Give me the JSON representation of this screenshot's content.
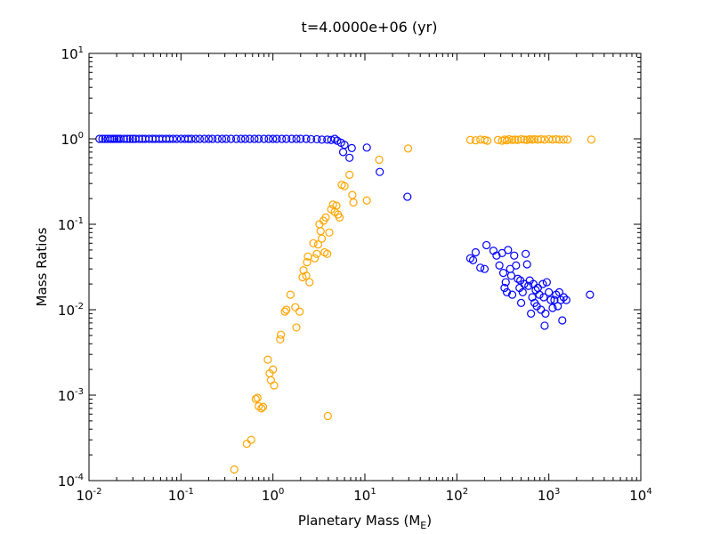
{
  "chart_data": {
    "type": "scatter",
    "title": "t=4.0000e+06 (yr)",
    "xlabel": "Planetary Mass (M",
    "xlabel_sub": "E",
    "xlabel_suffix": ")",
    "ylabel": "Mass Ratios",
    "xscale": "log",
    "yscale": "log",
    "xlim": [
      0.01,
      10000
    ],
    "ylim": [
      0.0001,
      10
    ],
    "grid": false,
    "x_ticks": [
      {
        "base": "10",
        "exp": "-2"
      },
      {
        "base": "10",
        "exp": "-1"
      },
      {
        "base": "10",
        "exp": "0"
      },
      {
        "base": "10",
        "exp": "1"
      },
      {
        "base": "10",
        "exp": "2"
      },
      {
        "base": "10",
        "exp": "3"
      },
      {
        "base": "10",
        "exp": "4"
      }
    ],
    "y_ticks": [
      {
        "base": "10",
        "exp": "-4"
      },
      {
        "base": "10",
        "exp": "-3"
      },
      {
        "base": "10",
        "exp": "-2"
      },
      {
        "base": "10",
        "exp": "-1"
      },
      {
        "base": "10",
        "exp": "0"
      },
      {
        "base": "10",
        "exp": "1"
      }
    ],
    "series": [
      {
        "color": "#0000ff",
        "marker": "open-circle",
        "points": [
          [
            0.013,
            1.0
          ],
          [
            0.014,
            1.0
          ],
          [
            0.015,
            1.0
          ],
          [
            0.016,
            1.0
          ],
          [
            0.017,
            1.0
          ],
          [
            0.018,
            1.0
          ],
          [
            0.019,
            1.0
          ],
          [
            0.02,
            1.0
          ],
          [
            0.021,
            1.0
          ],
          [
            0.022,
            1.0
          ],
          [
            0.024,
            1.0
          ],
          [
            0.026,
            1.0
          ],
          [
            0.028,
            1.0
          ],
          [
            0.03,
            1.0
          ],
          [
            0.032,
            1.0
          ],
          [
            0.035,
            1.0
          ],
          [
            0.038,
            1.0
          ],
          [
            0.041,
            1.0
          ],
          [
            0.045,
            1.0
          ],
          [
            0.049,
            1.0
          ],
          [
            0.053,
            1.0
          ],
          [
            0.058,
            1.0
          ],
          [
            0.063,
            1.0
          ],
          [
            0.069,
            1.0
          ],
          [
            0.075,
            1.0
          ],
          [
            0.082,
            1.0
          ],
          [
            0.09,
            1.0
          ],
          [
            0.1,
            1.0
          ],
          [
            0.11,
            1.0
          ],
          [
            0.12,
            1.0
          ],
          [
            0.13,
            1.0
          ],
          [
            0.145,
            1.0
          ],
          [
            0.16,
            1.0
          ],
          [
            0.18,
            1.0
          ],
          [
            0.2,
            1.0
          ],
          [
            0.22,
            1.0
          ],
          [
            0.25,
            1.0
          ],
          [
            0.28,
            1.0
          ],
          [
            0.31,
            1.0
          ],
          [
            0.35,
            1.0
          ],
          [
            0.4,
            1.0
          ],
          [
            0.45,
            1.0
          ],
          [
            0.5,
            1.0
          ],
          [
            0.56,
            1.0
          ],
          [
            0.63,
            1.0
          ],
          [
            0.7,
            1.0
          ],
          [
            0.8,
            1.0
          ],
          [
            0.9,
            1.0
          ],
          [
            1.0,
            1.0
          ],
          [
            1.1,
            1.0
          ],
          [
            1.25,
            1.0
          ],
          [
            1.4,
            1.0
          ],
          [
            1.6,
            1.0
          ],
          [
            1.8,
            1.0
          ],
          [
            2.0,
            1.0
          ],
          [
            2.3,
            1.0
          ],
          [
            2.6,
            0.99
          ],
          [
            3.0,
            0.99
          ],
          [
            3.4,
            0.98
          ],
          [
            3.9,
            0.98
          ],
          [
            4.3,
            0.97
          ],
          [
            4.7,
            1.0
          ],
          [
            5.0,
            0.95
          ],
          [
            5.5,
            0.9
          ],
          [
            6.0,
            0.85
          ],
          [
            5.8,
            0.7
          ],
          [
            6.8,
            0.6
          ],
          [
            7.2,
            0.78
          ],
          [
            10.5,
            0.79
          ],
          [
            14.5,
            0.41
          ],
          [
            29.0,
            0.21
          ],
          [
            140,
            0.04
          ],
          [
            150,
            0.038
          ],
          [
            160,
            0.047
          ],
          [
            180,
            0.031
          ],
          [
            200,
            0.03
          ],
          [
            210,
            0.057
          ],
          [
            250,
            0.049
          ],
          [
            270,
            0.043
          ],
          [
            290,
            0.033
          ],
          [
            310,
            0.046
          ],
          [
            320,
            0.027
          ],
          [
            330,
            0.018
          ],
          [
            340,
            0.021
          ],
          [
            350,
            0.016
          ],
          [
            360,
            0.05
          ],
          [
            380,
            0.03
          ],
          [
            390,
            0.025
          ],
          [
            400,
            0.015
          ],
          [
            420,
            0.043
          ],
          [
            440,
            0.033
          ],
          [
            460,
            0.023
          ],
          [
            480,
            0.018
          ],
          [
            490,
            0.022
          ],
          [
            500,
            0.012
          ],
          [
            520,
            0.016
          ],
          [
            540,
            0.02
          ],
          [
            560,
            0.045
          ],
          [
            580,
            0.034
          ],
          [
            600,
            0.019
          ],
          [
            620,
            0.022
          ],
          [
            640,
            0.009
          ],
          [
            660,
            0.014
          ],
          [
            680,
            0.02
          ],
          [
            700,
            0.012
          ],
          [
            720,
            0.017
          ],
          [
            740,
            0.011
          ],
          [
            760,
            0.018
          ],
          [
            790,
            0.015
          ],
          [
            820,
            0.01
          ],
          [
            860,
            0.02
          ],
          [
            880,
            0.014
          ],
          [
            900,
            0.0065
          ],
          [
            920,
            0.009
          ],
          [
            950,
            0.021
          ],
          [
            1000,
            0.016
          ],
          [
            1050,
            0.013
          ],
          [
            1100,
            0.0105
          ],
          [
            1150,
            0.013
          ],
          [
            1200,
            0.015
          ],
          [
            1250,
            0.011
          ],
          [
            1300,
            0.016
          ],
          [
            1350,
            0.013
          ],
          [
            1400,
            0.0075
          ],
          [
            1450,
            0.014
          ],
          [
            1550,
            0.013
          ],
          [
            2800,
            0.015
          ]
        ]
      },
      {
        "color": "#ffa500",
        "marker": "open-circle",
        "points": [
          [
            0.38,
            0.000135
          ],
          [
            0.52,
            0.00027
          ],
          [
            0.58,
            0.0003
          ],
          [
            0.65,
            0.0009
          ],
          [
            0.68,
            0.00093
          ],
          [
            0.7,
            0.00074
          ],
          [
            0.75,
            0.0007
          ],
          [
            0.78,
            0.00073
          ],
          [
            0.88,
            0.0026
          ],
          [
            0.92,
            0.0018
          ],
          [
            0.95,
            0.0015
          ],
          [
            1.0,
            0.002
          ],
          [
            1.03,
            0.0013
          ],
          [
            1.2,
            0.0045
          ],
          [
            1.22,
            0.0051
          ],
          [
            1.35,
            0.0095
          ],
          [
            1.4,
            0.01
          ],
          [
            1.55,
            0.015
          ],
          [
            1.75,
            0.0107
          ],
          [
            1.8,
            0.0062
          ],
          [
            1.95,
            0.0095
          ],
          [
            2.1,
            0.024
          ],
          [
            2.15,
            0.029
          ],
          [
            2.3,
            0.025
          ],
          [
            2.35,
            0.036
          ],
          [
            2.4,
            0.042
          ],
          [
            2.5,
            0.021
          ],
          [
            2.75,
            0.06
          ],
          [
            2.85,
            0.04
          ],
          [
            3.0,
            0.045
          ],
          [
            3.1,
            0.058
          ],
          [
            3.2,
            0.1
          ],
          [
            3.3,
            0.083
          ],
          [
            3.4,
            0.068
          ],
          [
            3.55,
            0.11
          ],
          [
            3.65,
            0.047
          ],
          [
            3.75,
            0.12
          ],
          [
            3.9,
            0.045
          ],
          [
            3.95,
            0.00057
          ],
          [
            4.1,
            0.08
          ],
          [
            4.3,
            0.15
          ],
          [
            4.5,
            0.17
          ],
          [
            4.7,
            0.14
          ],
          [
            4.9,
            0.165
          ],
          [
            5.1,
            0.13
          ],
          [
            5.3,
            0.12
          ],
          [
            5.6,
            0.29
          ],
          [
            6.0,
            0.28
          ],
          [
            6.8,
            0.38
          ],
          [
            7.3,
            0.22
          ],
          [
            7.5,
            0.18
          ],
          [
            10.5,
            0.19
          ],
          [
            14.3,
            0.57
          ],
          [
            29.5,
            0.77
          ],
          [
            140,
            0.97
          ],
          [
            160,
            0.96
          ],
          [
            180,
            0.98
          ],
          [
            200,
            0.97
          ],
          [
            215,
            0.95
          ],
          [
            280,
            0.97
          ],
          [
            310,
            0.95
          ],
          [
            330,
            0.98
          ],
          [
            350,
            0.96
          ],
          [
            370,
            0.99
          ],
          [
            400,
            0.97
          ],
          [
            430,
            0.98
          ],
          [
            460,
            0.97
          ],
          [
            500,
            0.99
          ],
          [
            540,
            0.98
          ],
          [
            580,
            0.97
          ],
          [
            620,
            0.99
          ],
          [
            660,
            0.98
          ],
          [
            700,
            0.99
          ],
          [
            760,
            0.98
          ],
          [
            820,
            0.99
          ],
          [
            900,
            0.98
          ],
          [
            1000,
            0.99
          ],
          [
            1100,
            0.98
          ],
          [
            1200,
            0.99
          ],
          [
            1300,
            0.98
          ],
          [
            1450,
            0.98
          ],
          [
            1600,
            0.98
          ],
          [
            2900,
            0.98
          ]
        ]
      }
    ]
  }
}
